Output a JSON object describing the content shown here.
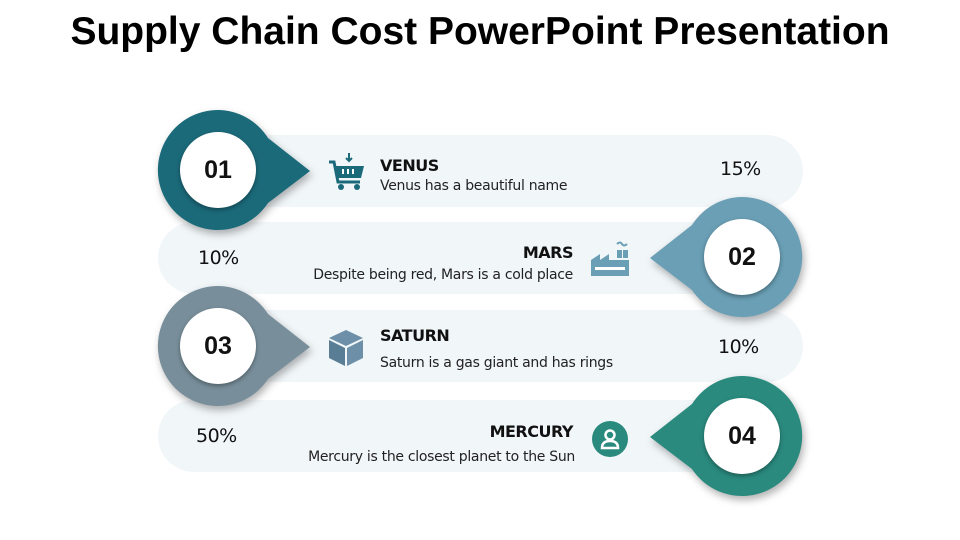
{
  "title": "Supply Chain Cost PowerPoint Presentation",
  "items": [
    {
      "number": "01",
      "heading": "VENUS",
      "description": "Venus has a beautiful name",
      "percent": "15%",
      "color": "#1b6a7a",
      "icon": "shopping-cart-icon"
    },
    {
      "number": "02",
      "heading": "MARS",
      "description": "Despite being red, Mars is a cold place",
      "percent": "10%",
      "color": "#6a9fb5",
      "icon": "factory-icon"
    },
    {
      "number": "03",
      "heading": "SATURN",
      "description": "Saturn is a gas giant and has rings",
      "percent": "10%",
      "color": "#788f9b",
      "icon": "box-icon"
    },
    {
      "number": "04",
      "heading": "MERCURY",
      "description": "Mercury is the closest planet to the Sun",
      "percent": "50%",
      "color": "#2a8a7e",
      "icon": "user-icon"
    }
  ],
  "bar_background": "#f1f6f9"
}
